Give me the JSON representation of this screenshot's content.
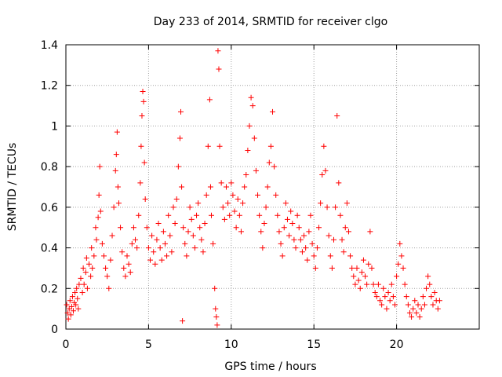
{
  "chart_data": {
    "type": "scatter",
    "title": "Day 233 of 2014, SRMTID for receiver clgo",
    "xlabel": "GPS time / hours",
    "ylabel": "SRMTID / TECUs",
    "xlim": [
      0,
      25
    ],
    "ylim": [
      0,
      1.4
    ],
    "grid": true,
    "marker": "+",
    "marker_color": "#ff0000",
    "x_ticks": [
      {
        "value": 0,
        "label": "0"
      },
      {
        "value": 5,
        "label": "5"
      },
      {
        "value": 10,
        "label": "10"
      },
      {
        "value": 15,
        "label": "15"
      },
      {
        "value": 20,
        "label": "20"
      }
    ],
    "y_ticks": [
      {
        "value": 0,
        "label": "0"
      },
      {
        "value": 0.2,
        "label": "0.2"
      },
      {
        "value": 0.4,
        "label": "0.4"
      },
      {
        "value": 0.6,
        "label": "0.6"
      },
      {
        "value": 0.8,
        "label": "0.8"
      },
      {
        "value": 1.0,
        "label": "1"
      },
      {
        "value": 1.2,
        "label": "1.2"
      },
      {
        "value": 1.4,
        "label": "1.4"
      }
    ],
    "series": [
      {
        "name": "SRMTID",
        "points": [
          [
            0.05,
            0.12
          ],
          [
            0.1,
            0.08
          ],
          [
            0.15,
            0.05
          ],
          [
            0.2,
            0.1
          ],
          [
            0.25,
            0.14
          ],
          [
            0.3,
            0.07
          ],
          [
            0.35,
            0.11
          ],
          [
            0.4,
            0.16
          ],
          [
            0.45,
            0.09
          ],
          [
            0.5,
            0.13
          ],
          [
            0.55,
            0.18
          ],
          [
            0.6,
            0.12
          ],
          [
            0.65,
            0.2
          ],
          [
            0.7,
            0.15
          ],
          [
            0.75,
            0.1
          ],
          [
            0.8,
            0.22
          ],
          [
            0.9,
            0.25
          ],
          [
            1.0,
            0.18
          ],
          [
            1.05,
            0.3
          ],
          [
            1.1,
            0.22
          ],
          [
            1.2,
            0.28
          ],
          [
            1.25,
            0.35
          ],
          [
            1.3,
            0.2
          ],
          [
            1.4,
            0.32
          ],
          [
            1.5,
            0.26
          ],
          [
            1.55,
            0.4
          ],
          [
            1.6,
            0.3
          ],
          [
            1.7,
            0.36
          ],
          [
            1.8,
            0.5
          ],
          [
            1.85,
            0.44
          ],
          [
            1.95,
            0.55
          ],
          [
            2.0,
            0.66
          ],
          [
            2.05,
            0.8
          ],
          [
            2.1,
            0.58
          ],
          [
            2.2,
            0.42
          ],
          [
            2.3,
            0.36
          ],
          [
            2.4,
            0.3
          ],
          [
            2.5,
            0.26
          ],
          [
            2.6,
            0.2
          ],
          [
            2.7,
            0.34
          ],
          [
            2.8,
            0.46
          ],
          [
            2.9,
            0.6
          ],
          [
            3.0,
            0.78
          ],
          [
            3.05,
            0.86
          ],
          [
            3.1,
            0.97
          ],
          [
            3.15,
            0.7
          ],
          [
            3.2,
            0.62
          ],
          [
            3.3,
            0.5
          ],
          [
            3.4,
            0.38
          ],
          [
            3.5,
            0.3
          ],
          [
            3.6,
            0.26
          ],
          [
            3.7,
            0.36
          ],
          [
            3.8,
            0.32
          ],
          [
            3.9,
            0.28
          ],
          [
            4.0,
            0.42
          ],
          [
            4.1,
            0.5
          ],
          [
            4.2,
            0.44
          ],
          [
            4.3,
            0.4
          ],
          [
            4.4,
            0.56
          ],
          [
            4.5,
            0.72
          ],
          [
            4.55,
            0.9
          ],
          [
            4.6,
            1.05
          ],
          [
            4.65,
            1.17
          ],
          [
            4.7,
            1.12
          ],
          [
            4.75,
            0.82
          ],
          [
            4.8,
            0.64
          ],
          [
            4.9,
            0.5
          ],
          [
            5.0,
            0.4
          ],
          [
            5.1,
            0.34
          ],
          [
            5.2,
            0.46
          ],
          [
            5.3,
            0.38
          ],
          [
            5.4,
            0.32
          ],
          [
            5.5,
            0.44
          ],
          [
            5.6,
            0.52
          ],
          [
            5.7,
            0.4
          ],
          [
            5.8,
            0.34
          ],
          [
            5.9,
            0.48
          ],
          [
            6.0,
            0.42
          ],
          [
            6.1,
            0.36
          ],
          [
            6.2,
            0.56
          ],
          [
            6.3,
            0.46
          ],
          [
            6.4,
            0.38
          ],
          [
            6.5,
            0.6
          ],
          [
            6.6,
            0.52
          ],
          [
            6.7,
            0.64
          ],
          [
            6.8,
            0.8
          ],
          [
            6.9,
            0.94
          ],
          [
            6.95,
            1.07
          ],
          [
            7.0,
            0.7
          ],
          [
            7.05,
            0.04
          ],
          [
            7.1,
            0.5
          ],
          [
            7.2,
            0.42
          ],
          [
            7.3,
            0.36
          ],
          [
            7.4,
            0.48
          ],
          [
            7.5,
            0.6
          ],
          [
            7.6,
            0.54
          ],
          [
            7.7,
            0.46
          ],
          [
            7.8,
            0.4
          ],
          [
            7.9,
            0.56
          ],
          [
            8.0,
            0.62
          ],
          [
            8.1,
            0.5
          ],
          [
            8.2,
            0.44
          ],
          [
            8.3,
            0.38
          ],
          [
            8.4,
            0.52
          ],
          [
            8.5,
            0.66
          ],
          [
            8.6,
            0.9
          ],
          [
            8.7,
            1.13
          ],
          [
            8.75,
            0.7
          ],
          [
            8.8,
            0.56
          ],
          [
            8.9,
            0.42
          ],
          [
            9.0,
            0.2
          ],
          [
            9.05,
            0.1
          ],
          [
            9.1,
            0.06
          ],
          [
            9.15,
            0.02
          ],
          [
            9.2,
            1.37
          ],
          [
            9.25,
            1.28
          ],
          [
            9.3,
            0.9
          ],
          [
            9.4,
            0.72
          ],
          [
            9.5,
            0.6
          ],
          [
            9.6,
            0.54
          ],
          [
            9.7,
            0.7
          ],
          [
            9.8,
            0.62
          ],
          [
            9.9,
            0.56
          ],
          [
            10.0,
            0.72
          ],
          [
            10.1,
            0.66
          ],
          [
            10.2,
            0.58
          ],
          [
            10.3,
            0.5
          ],
          [
            10.4,
            0.64
          ],
          [
            10.5,
            0.56
          ],
          [
            10.6,
            0.48
          ],
          [
            10.7,
            0.62
          ],
          [
            10.8,
            0.7
          ],
          [
            10.9,
            0.76
          ],
          [
            11.0,
            0.88
          ],
          [
            11.1,
            1.0
          ],
          [
            11.2,
            1.14
          ],
          [
            11.3,
            1.1
          ],
          [
            11.4,
            0.94
          ],
          [
            11.5,
            0.78
          ],
          [
            11.6,
            0.66
          ],
          [
            11.7,
            0.56
          ],
          [
            11.8,
            0.48
          ],
          [
            11.9,
            0.4
          ],
          [
            12.0,
            0.52
          ],
          [
            12.1,
            0.6
          ],
          [
            12.2,
            0.7
          ],
          [
            12.3,
            0.82
          ],
          [
            12.4,
            0.9
          ],
          [
            12.5,
            1.07
          ],
          [
            12.6,
            0.8
          ],
          [
            12.7,
            0.66
          ],
          [
            12.8,
            0.56
          ],
          [
            12.9,
            0.48
          ],
          [
            13.0,
            0.42
          ],
          [
            13.1,
            0.36
          ],
          [
            13.2,
            0.5
          ],
          [
            13.3,
            0.62
          ],
          [
            13.4,
            0.54
          ],
          [
            13.5,
            0.46
          ],
          [
            13.6,
            0.58
          ],
          [
            13.7,
            0.52
          ],
          [
            13.8,
            0.44
          ],
          [
            13.9,
            0.4
          ],
          [
            14.0,
            0.56
          ],
          [
            14.1,
            0.5
          ],
          [
            14.2,
            0.44
          ],
          [
            14.3,
            0.38
          ],
          [
            14.4,
            0.46
          ],
          [
            14.5,
            0.4
          ],
          [
            14.6,
            0.34
          ],
          [
            14.7,
            0.48
          ],
          [
            14.8,
            0.56
          ],
          [
            14.9,
            0.42
          ],
          [
            15.0,
            0.36
          ],
          [
            15.1,
            0.3
          ],
          [
            15.2,
            0.4
          ],
          [
            15.3,
            0.5
          ],
          [
            15.4,
            0.62
          ],
          [
            15.5,
            0.76
          ],
          [
            15.6,
            0.9
          ],
          [
            15.7,
            0.78
          ],
          [
            15.8,
            0.6
          ],
          [
            15.9,
            0.46
          ],
          [
            16.0,
            0.36
          ],
          [
            16.1,
            0.3
          ],
          [
            16.2,
            0.44
          ],
          [
            16.3,
            0.6
          ],
          [
            16.4,
            1.05
          ],
          [
            16.5,
            0.72
          ],
          [
            16.6,
            0.56
          ],
          [
            16.7,
            0.44
          ],
          [
            16.8,
            0.38
          ],
          [
            16.9,
            0.5
          ],
          [
            17.0,
            0.62
          ],
          [
            17.1,
            0.48
          ],
          [
            17.2,
            0.36
          ],
          [
            17.3,
            0.3
          ],
          [
            17.4,
            0.26
          ],
          [
            17.5,
            0.22
          ],
          [
            17.6,
            0.3
          ],
          [
            17.7,
            0.24
          ],
          [
            17.8,
            0.2
          ],
          [
            17.9,
            0.28
          ],
          [
            18.0,
            0.34
          ],
          [
            18.1,
            0.26
          ],
          [
            18.2,
            0.22
          ],
          [
            18.3,
            0.32
          ],
          [
            18.4,
            0.48
          ],
          [
            18.5,
            0.3
          ],
          [
            18.6,
            0.22
          ],
          [
            18.7,
            0.18
          ],
          [
            18.8,
            0.16
          ],
          [
            18.9,
            0.22
          ],
          [
            19.0,
            0.14
          ],
          [
            19.1,
            0.12
          ],
          [
            19.2,
            0.2
          ],
          [
            19.3,
            0.16
          ],
          [
            19.4,
            0.1
          ],
          [
            19.5,
            0.18
          ],
          [
            19.6,
            0.14
          ],
          [
            19.7,
            0.22
          ],
          [
            19.8,
            0.16
          ],
          [
            19.9,
            0.12
          ],
          [
            20.0,
            0.26
          ],
          [
            20.1,
            0.32
          ],
          [
            20.2,
            0.42
          ],
          [
            20.3,
            0.36
          ],
          [
            20.4,
            0.3
          ],
          [
            20.5,
            0.22
          ],
          [
            20.6,
            0.16
          ],
          [
            20.7,
            0.12
          ],
          [
            20.8,
            0.08
          ],
          [
            20.9,
            0.06
          ],
          [
            21.0,
            0.1
          ],
          [
            21.1,
            0.14
          ],
          [
            21.2,
            0.08
          ],
          [
            21.3,
            0.12
          ],
          [
            21.4,
            0.06
          ],
          [
            21.5,
            0.1
          ],
          [
            21.6,
            0.16
          ],
          [
            21.7,
            0.12
          ],
          [
            21.8,
            0.2
          ],
          [
            21.9,
            0.26
          ],
          [
            22.0,
            0.22
          ],
          [
            22.1,
            0.16
          ],
          [
            22.2,
            0.12
          ],
          [
            22.3,
            0.18
          ],
          [
            22.4,
            0.14
          ],
          [
            22.5,
            0.1
          ],
          [
            22.6,
            0.14
          ]
        ]
      }
    ]
  }
}
